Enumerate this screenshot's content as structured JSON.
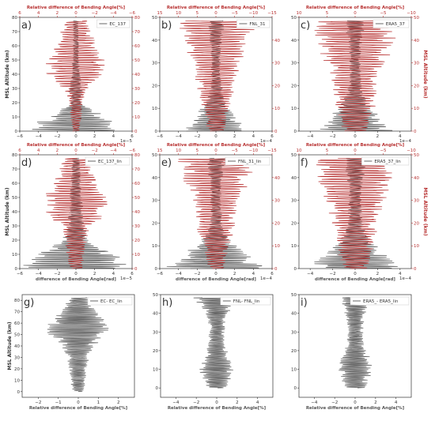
{
  "colors": {
    "gray": "#555555",
    "red": "#b83232",
    "axis": "#333333",
    "bg": "#ffffff"
  },
  "labels": {
    "ylabel": "MSL Altitude (km)",
    "top_label": "Relative difference of Bending Angle[%]",
    "bottom_label_diff": "difference of Bending Angle[rad]",
    "bottom_label_rel": "Relative difference of Bending Angle[%]",
    "right_label": "MSL Altitude (km)"
  },
  "chart_data": [
    {
      "type": "line",
      "panel": "a)",
      "legend": "EC_137",
      "ylim": [
        0,
        80
      ],
      "yticks": [
        0,
        10,
        20,
        30,
        40,
        50,
        60,
        70,
        80
      ],
      "xlim": [
        -6,
        6
      ],
      "xticks": [
        -6,
        -4,
        -2,
        0,
        2,
        4,
        6
      ],
      "xtick_labels": [
        "−6",
        "−4",
        "−2",
        "0",
        "2",
        "4",
        "6"
      ],
      "multiplier": "1e−5",
      "top_xlim": [
        6,
        -6
      ],
      "top_ticks": [
        6,
        4,
        2,
        0,
        -2,
        -4,
        -6
      ],
      "top_tick_labels": [
        "6",
        "4",
        "2",
        "0",
        "−2",
        "−4",
        "−6"
      ],
      "right_ylim": [
        0,
        80
      ],
      "right_ticks": [
        0,
        10,
        20,
        30,
        40,
        50,
        60,
        70,
        80
      ],
      "series": [
        {
          "color": "gray",
          "amp": [
            5.5,
            3.5,
            0.6,
            0.8,
            0.5,
            0.4,
            0.3,
            0.3,
            0.3
          ]
        },
        {
          "color": "red",
          "amp": [
            0.4,
            0.6,
            0.8,
            1.2,
            3.2,
            3.4,
            2.5,
            1.8,
            1.2
          ]
        }
      ]
    },
    {
      "type": "line",
      "panel": "b)",
      "legend": "FNL_31",
      "ylim": [
        0,
        50
      ],
      "yticks": [
        0,
        10,
        20,
        30,
        40,
        50
      ],
      "xlim": [
        -6,
        6
      ],
      "xticks": [
        -6,
        -4,
        -2,
        0,
        2,
        4,
        6
      ],
      "xtick_labels": [
        "−6",
        "−4",
        "−2",
        "0",
        "2",
        "4",
        "6"
      ],
      "multiplier": "1e−4",
      "top_xlim": [
        15,
        -15
      ],
      "top_ticks": [
        15,
        10,
        5,
        0,
        -5,
        -10,
        -15
      ],
      "top_tick_labels": [
        "15",
        "10",
        "5",
        "0",
        "−5",
        "−10",
        "−15"
      ],
      "right_ylim": [
        0,
        50
      ],
      "right_ticks": [
        0,
        10,
        20,
        30,
        40
      ],
      "series": [
        {
          "color": "gray",
          "amp": [
            3.5,
            2.5,
            1.5,
            0.8,
            0.6,
            0.5,
            0.5,
            0.6,
            0.8,
            1.0
          ]
        },
        {
          "color": "red",
          "amp": [
            1.0,
            1.2,
            1.5,
            2.0,
            2.2,
            2.5,
            3.0,
            3.5,
            4.0,
            4.5
          ]
        }
      ]
    },
    {
      "type": "line",
      "panel": "c)",
      "legend": "ERA5_37",
      "ylim": [
        0,
        50
      ],
      "yticks": [
        0,
        10,
        20,
        30,
        40,
        50
      ],
      "xlim": [
        -5,
        5
      ],
      "xticks": [
        -4,
        -2,
        0,
        2,
        4
      ],
      "xtick_labels": [
        "−4",
        "−2",
        "0",
        "2",
        "4"
      ],
      "multiplier": "1e−4",
      "top_xlim": [
        10,
        -10
      ],
      "top_ticks": [
        10,
        5,
        0,
        -5,
        -10
      ],
      "top_tick_labels": [
        "10",
        "5",
        "0",
        "−5",
        "−10"
      ],
      "right_ylim": [
        0,
        50
      ],
      "right_ticks": [
        0,
        10,
        20,
        30,
        40,
        50
      ],
      "series": [
        {
          "color": "gray",
          "amp": [
            3.5,
            2.5,
            1.5,
            0.8,
            0.6,
            0.5,
            0.5,
            0.6,
            0.8,
            1.0
          ]
        },
        {
          "color": "red",
          "amp": [
            1.2,
            1.5,
            1.8,
            2.0,
            2.2,
            2.5,
            3.0,
            3.5,
            3.8,
            4.0
          ]
        }
      ]
    },
    {
      "type": "line",
      "panel": "d)",
      "legend": "EC_137_lin",
      "ylim": [
        0,
        80
      ],
      "yticks": [
        0,
        10,
        20,
        30,
        40,
        50,
        60,
        70,
        80
      ],
      "xlim": [
        -6,
        6
      ],
      "xticks": [
        -6,
        -4,
        -2,
        0,
        2,
        4,
        6
      ],
      "xtick_labels": [
        "−6",
        "−4",
        "−2",
        "0",
        "2",
        "4",
        "6"
      ],
      "multiplier": "1e−5",
      "top_xlim": [
        6,
        -6
      ],
      "top_ticks": [
        6,
        4,
        2,
        0,
        -2,
        -4,
        -6
      ],
      "top_tick_labels": [
        "6",
        "4",
        "2",
        "0",
        "−2",
        "−4",
        "−6"
      ],
      "right_ylim": [
        0,
        80
      ],
      "right_ticks": [
        0,
        10,
        20,
        30,
        40,
        50,
        60,
        70,
        80
      ],
      "xlabel": "difference of Bending Angle[rad]",
      "series": [
        {
          "color": "gray",
          "amp": [
            6.0,
            5.0,
            1.5,
            1.0,
            0.8,
            0.7,
            0.6,
            0.5,
            0.5
          ]
        },
        {
          "color": "red",
          "amp": [
            0.8,
            1.0,
            1.2,
            1.5,
            3.5,
            3.8,
            2.8,
            2.0,
            1.5
          ]
        }
      ]
    },
    {
      "type": "line",
      "panel": "e)",
      "legend": "FNL_31_lin",
      "ylim": [
        0,
        50
      ],
      "yticks": [
        0,
        10,
        20,
        30,
        40,
        50
      ],
      "xlim": [
        -6,
        6
      ],
      "xticks": [
        -6,
        -4,
        -2,
        0,
        2,
        4,
        6
      ],
      "xtick_labels": [
        "−6",
        "−4",
        "−2",
        "0",
        "2",
        "4",
        "6"
      ],
      "multiplier": "1e−4",
      "top_xlim": [
        15,
        -15
      ],
      "top_ticks": [
        15,
        10,
        5,
        0,
        -5,
        -10,
        -15
      ],
      "top_tick_labels": [
        "15",
        "10",
        "5",
        "0",
        "−5",
        "−10",
        "−15"
      ],
      "right_ylim": [
        0,
        50
      ],
      "right_ticks": [
        0,
        10,
        20,
        30,
        40
      ],
      "xlabel": "difference of Bending Angle[rad]",
      "series": [
        {
          "color": "gray",
          "amp": [
            6.0,
            4.0,
            2.0,
            1.0,
            0.7,
            0.6,
            0.6,
            0.7,
            0.9,
            1.0
          ]
        },
        {
          "color": "red",
          "amp": [
            1.0,
            1.2,
            1.5,
            2.0,
            2.2,
            2.5,
            3.0,
            3.5,
            4.0,
            4.5
          ]
        }
      ]
    },
    {
      "type": "line",
      "panel": "f)",
      "legend": "ERA5_37_lin",
      "ylim": [
        0,
        50
      ],
      "yticks": [
        0,
        10,
        20,
        30,
        40,
        50
      ],
      "xlim": [
        -5,
        5
      ],
      "xticks": [
        -4,
        -2,
        0,
        2,
        4
      ],
      "xtick_labels": [
        "−4",
        "−2",
        "0",
        "2",
        "4"
      ],
      "multiplier": "1e−4",
      "top_xlim": [
        10,
        -10
      ],
      "top_ticks": [
        10,
        5,
        0,
        -5,
        -10
      ],
      "top_tick_labels": [
        "10",
        "5",
        "0",
        "−5",
        "−10"
      ],
      "right_ylim": [
        0,
        50
      ],
      "right_ticks": [
        0,
        10,
        20,
        30,
        40,
        50
      ],
      "xlabel": "difference of Bending Angle[rad]",
      "series": [
        {
          "color": "gray",
          "amp": [
            4.5,
            3.0,
            1.8,
            1.0,
            0.7,
            0.6,
            0.6,
            0.7,
            0.9,
            1.0
          ]
        },
        {
          "color": "red",
          "amp": [
            1.2,
            1.5,
            1.8,
            2.0,
            2.2,
            2.5,
            3.0,
            3.5,
            3.8,
            4.0
          ]
        }
      ]
    },
    {
      "type": "line",
      "panel": "g)",
      "legend": "EC- EC_lin",
      "ylim": [
        -5,
        85
      ],
      "yticks": [
        0,
        10,
        20,
        30,
        40,
        50,
        60,
        70,
        80
      ],
      "xlim": [
        -2.8,
        2.8
      ],
      "xticks": [
        -2,
        -1,
        0,
        1,
        2
      ],
      "xtick_labels": [
        "−2",
        "−1",
        "0",
        "1",
        "2"
      ],
      "xlabel": "Relative difference of Bending Angle[%]",
      "series": [
        {
          "color": "gray",
          "amp": [
            0.3,
            0.4,
            0.5,
            0.6,
            0.9,
            1.8,
            1.5,
            0.9,
            0.5
          ]
        }
      ]
    },
    {
      "type": "line",
      "panel": "h)",
      "legend": "FNL- FNL_lin",
      "ylim": [
        -5,
        50
      ],
      "yticks": [
        0,
        10,
        20,
        30,
        40,
        50
      ],
      "xlim": [
        -5.5,
        5.5
      ],
      "xticks": [
        -4,
        -2,
        0,
        2,
        4
      ],
      "xtick_labels": [
        "−4",
        "−2",
        "0",
        "2",
        "4"
      ],
      "xlabel": "Relative difference of Bending Angle[%]",
      "series": [
        {
          "color": "gray",
          "amp": [
            1.0,
            1.5,
            1.8,
            1.2,
            1.0,
            0.8,
            0.8,
            1.0,
            1.5,
            2.5
          ]
        }
      ]
    },
    {
      "type": "line",
      "panel": "i)",
      "legend": "ERA5_- ERA5_lin",
      "ylim": [
        -5,
        50
      ],
      "yticks": [
        0,
        10,
        20,
        30,
        40,
        50
      ],
      "xlim": [
        -5.5,
        5.5
      ],
      "xticks": [
        -4,
        -2,
        0,
        2,
        4
      ],
      "xtick_labels": [
        "−4",
        "−2",
        "0",
        "2",
        "4"
      ],
      "xlabel": "Relative difference of Bending Angle[%]",
      "series": [
        {
          "color": "gray",
          "amp": [
            1.0,
            1.5,
            1.8,
            1.5,
            1.0,
            0.8,
            0.8,
            0.9,
            1.2,
            1.5
          ]
        }
      ]
    }
  ]
}
